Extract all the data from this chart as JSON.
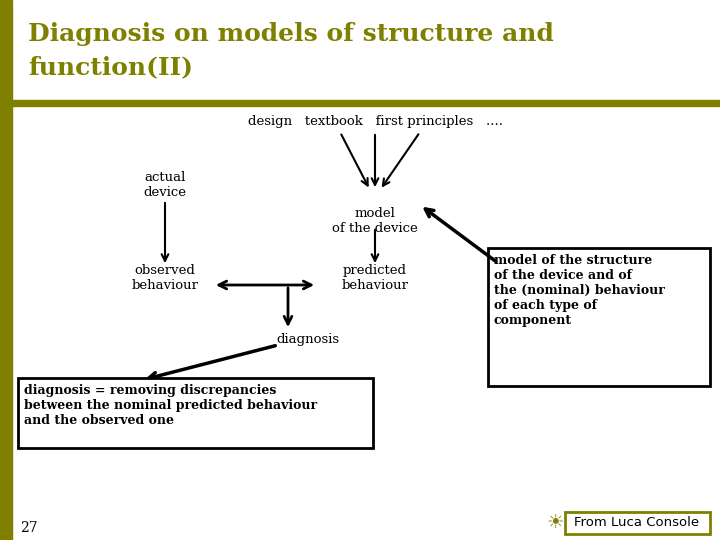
{
  "title_line1": "Diagnosis on models of structure and",
  "title_line2": "function(II)",
  "title_color": "#808000",
  "title_fontsize": 18,
  "bg_color": "#ffffff",
  "left_bar_color": "#808000",
  "top_bar_color": "#808000",
  "slide_number": "27",
  "footer_text": "From Luca Console",
  "footer_box_color": "#808000",
  "design_label": "design   textbook   first principles   ....",
  "actual_device_label": "actual\ndevice",
  "model_device_label": "model\nof the device",
  "observed_label": "observed\nbehaviour",
  "predicted_label": "predicted\nbehaviour",
  "diagnosis_label": "diagnosis",
  "box1_text": "diagnosis = removing discrepancies\nbetween the nominal predicted behaviour\nand the observed one",
  "box2_text": "model of the structure\nof the device and of\nthe (nominal) behaviour\nof each type of\ncomponent"
}
